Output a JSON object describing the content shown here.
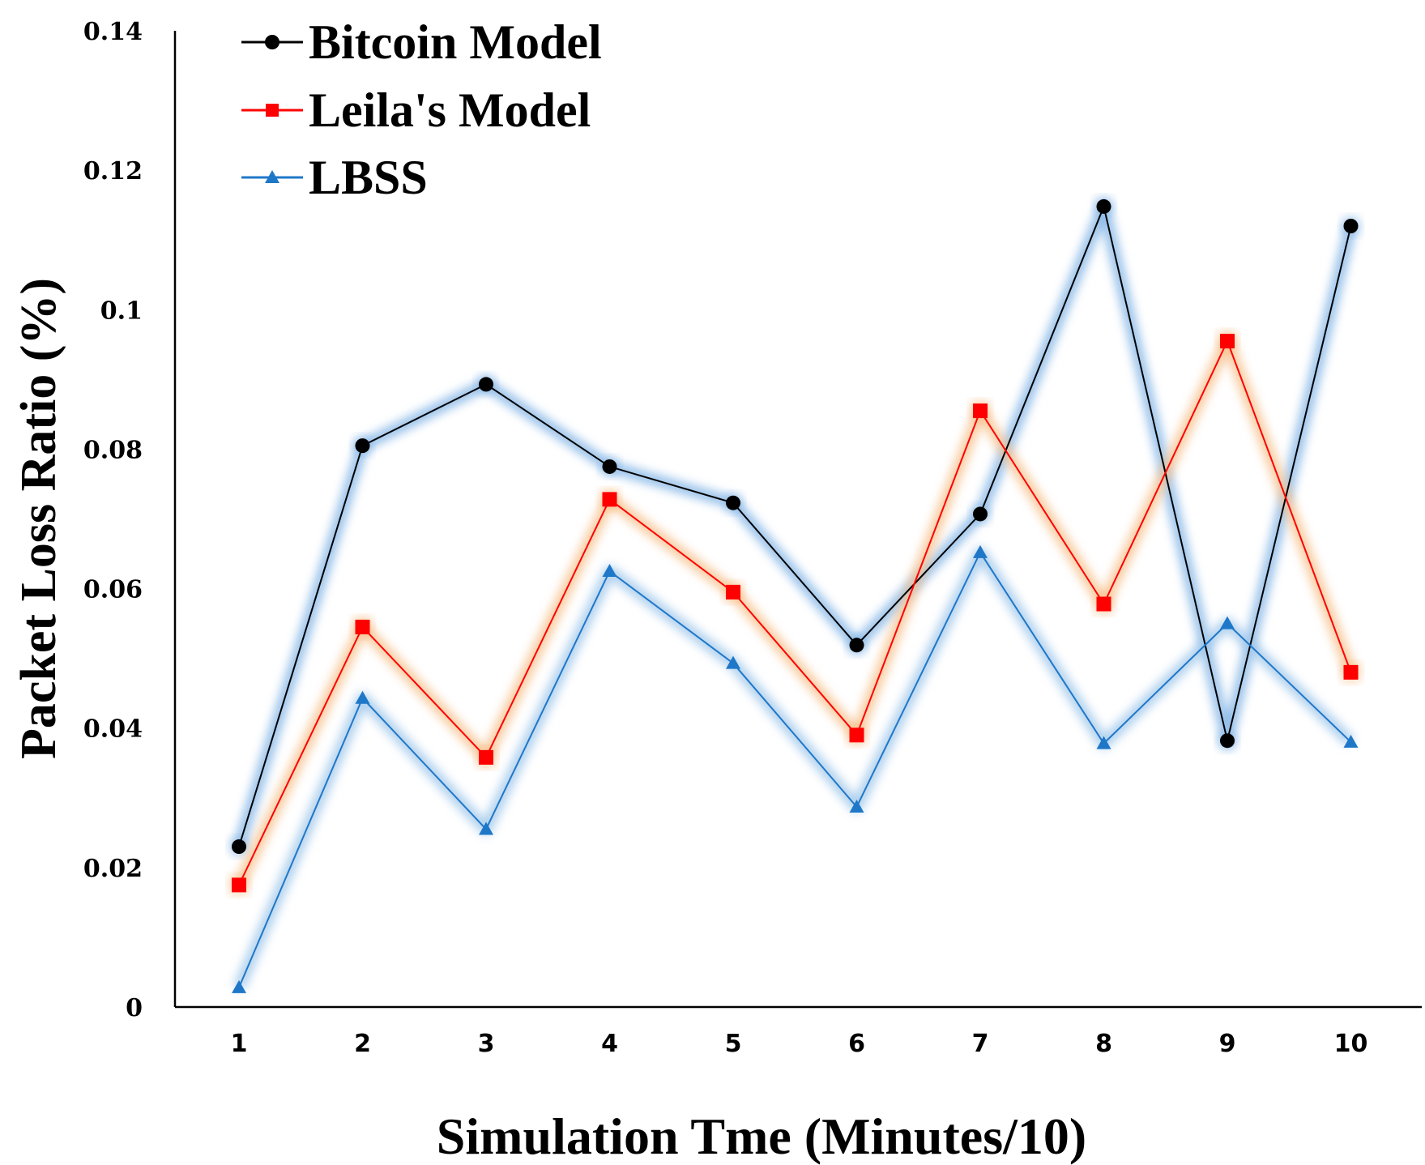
{
  "chart_data": {
    "type": "line",
    "title": "",
    "xlabel": "Simulation Tme (Minutes/10)",
    "ylabel": "Packet Loss Ratio (%)",
    "categories": [
      "1",
      "2",
      "3",
      "4",
      "5",
      "6",
      "7",
      "8",
      "9",
      "10"
    ],
    "y_ticks": [
      "0",
      "0.02",
      "0.04",
      "0.06",
      "0.08",
      "0.1",
      "0.12",
      "0.14"
    ],
    "ylim": [
      0,
      0.14
    ],
    "grid": false,
    "legend_position": "top-left",
    "series": [
      {
        "name": "Bitcoin Model",
        "marker": "circle",
        "color": "#000000",
        "glow": "#7fb2e5",
        "values": [
          0.023,
          0.0805,
          0.0893,
          0.0775,
          0.0723,
          0.0519,
          0.0707,
          0.1148,
          0.0382,
          0.112
        ]
      },
      {
        "name": "Leila's Model",
        "marker": "square",
        "color": "#ff0000",
        "glow": "#f7c08a",
        "values": [
          0.0175,
          0.0545,
          0.0358,
          0.0728,
          0.0595,
          0.039,
          0.0855,
          0.0578,
          0.0955,
          0.048
        ]
      },
      {
        "name": "LBSS",
        "marker": "triangle",
        "color": "#1f77c8",
        "glow": "#9dc6ea",
        "values": [
          0.0028,
          0.0443,
          0.0255,
          0.0625,
          0.0493,
          0.0287,
          0.0652,
          0.0378,
          0.055,
          0.038
        ]
      }
    ]
  }
}
